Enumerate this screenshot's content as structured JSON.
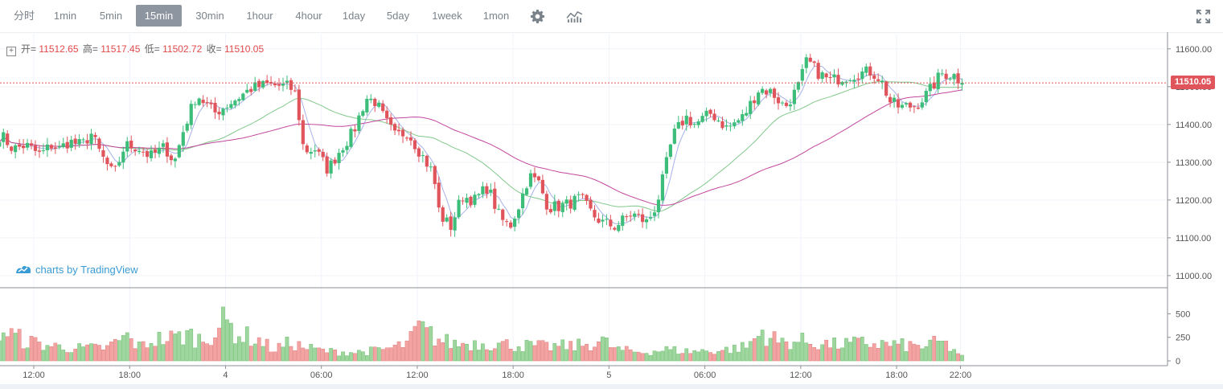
{
  "toolbar": {
    "timeframes": [
      "分时",
      "1min",
      "5min",
      "15min",
      "30min",
      "1hour",
      "4hour",
      "1day",
      "5day",
      "1week",
      "1mon"
    ],
    "active": "15min",
    "icons": [
      "gear-icon",
      "indicators-icon",
      "fullscreen-icon"
    ]
  },
  "legend": {
    "open_label": "开=",
    "open": "11512.65",
    "high_label": "高=",
    "high": "11517.45",
    "low_label": "低=",
    "low": "11502.72",
    "close_label": "收=",
    "close": "11510.05"
  },
  "watermark": "charts by TradingView",
  "last_price": "11510.05",
  "colors": {
    "up": "#26a69a",
    "up_body": "#3dbd7a",
    "down": "#e0555b",
    "ma_fast": "#a7b1e8",
    "ma_mid": "#82c88b",
    "ma_slow": "#c2479e",
    "price_line": "#e0555b"
  },
  "chart_data": {
    "type": "candlestick",
    "timeframe": "15min",
    "price_axis": {
      "ticks": [
        11000,
        11100,
        11200,
        11300,
        11400,
        11500,
        11600
      ],
      "ylim": [
        10970,
        11640
      ]
    },
    "volume_axis": {
      "ticks": [
        0,
        250,
        500
      ],
      "ylim": [
        0,
        760
      ]
    },
    "time_axis": {
      "labels": [
        "12:00",
        "18:00",
        "4",
        "06:00",
        "12:00",
        "18:00",
        "5",
        "06:00",
        "12:00",
        "18:00",
        "22:00"
      ],
      "label_positions_hours": [
        12,
        18,
        24,
        30,
        36,
        42,
        48,
        54,
        60,
        66,
        70
      ]
    },
    "start_hour": 9.85,
    "last_close": 11510.05,
    "close_points": [
      [
        10.0,
        11370
      ],
      [
        10.7,
        11335
      ],
      [
        11.5,
        11345
      ],
      [
        12.4,
        11320
      ],
      [
        13.1,
        11345
      ],
      [
        13.6,
        11335
      ],
      [
        14.2,
        11355
      ],
      [
        15.0,
        11345
      ],
      [
        15.6,
        11375
      ],
      [
        16.2,
        11320
      ],
      [
        17.0,
        11265
      ],
      [
        17.7,
        11345
      ],
      [
        18.5,
        11340
      ],
      [
        19.3,
        11315
      ],
      [
        20.2,
        11340
      ],
      [
        20.8,
        11300
      ],
      [
        21.4,
        11390
      ],
      [
        22.2,
        11480
      ],
      [
        23.3,
        11430
      ],
      [
        24.4,
        11460
      ],
      [
        25.6,
        11495
      ],
      [
        26.6,
        11505
      ],
      [
        28.0,
        11500
      ],
      [
        28.4,
        11480
      ],
      [
        28.9,
        11330
      ],
      [
        29.6,
        11335
      ],
      [
        30.4,
        11280
      ],
      [
        31.2,
        11335
      ],
      [
        32.0,
        11380
      ],
      [
        32.8,
        11470
      ],
      [
        33.4,
        11460
      ],
      [
        34.0,
        11410
      ],
      [
        34.6,
        11370
      ],
      [
        35.4,
        11380
      ],
      [
        36.2,
        11325
      ],
      [
        37.0,
        11270
      ],
      [
        37.4,
        11160
      ],
      [
        38.1,
        11130
      ],
      [
        38.8,
        11210
      ],
      [
        39.6,
        11200
      ],
      [
        40.4,
        11235
      ],
      [
        41.2,
        11150
      ],
      [
        41.8,
        11130
      ],
      [
        42.4,
        11190
      ],
      [
        43.0,
        11265
      ],
      [
        43.6,
        11245
      ],
      [
        44.2,
        11180
      ],
      [
        45.2,
        11185
      ],
      [
        46.2,
        11205
      ],
      [
        47.0,
        11160
      ],
      [
        47.6,
        11140
      ],
      [
        48.4,
        11130
      ],
      [
        49.4,
        11165
      ],
      [
        50.4,
        11140
      ],
      [
        51.0,
        11190
      ],
      [
        51.4,
        11260
      ],
      [
        52.0,
        11370
      ],
      [
        52.8,
        11420
      ],
      [
        53.4,
        11400
      ],
      [
        54.4,
        11430
      ],
      [
        55.4,
        11390
      ],
      [
        56.4,
        11420
      ],
      [
        57.4,
        11495
      ],
      [
        58.2,
        11485
      ],
      [
        59.0,
        11445
      ],
      [
        59.8,
        11495
      ],
      [
        60.4,
        11570
      ],
      [
        61.0,
        11540
      ],
      [
        61.8,
        11515
      ],
      [
        62.6,
        11525
      ],
      [
        63.6,
        11535
      ],
      [
        64.4,
        11540
      ],
      [
        65.0,
        11520
      ],
      [
        65.6,
        11460
      ],
      [
        66.2,
        11445
      ],
      [
        67.2,
        11450
      ],
      [
        68.0,
        11485
      ],
      [
        68.8,
        11535
      ],
      [
        69.6,
        11530
      ],
      [
        70.1,
        11510
      ]
    ],
    "volume_points": [
      [
        10.0,
        320
      ],
      [
        11.5,
        210
      ],
      [
        13.0,
        160
      ],
      [
        15.0,
        130
      ],
      [
        16.6,
        140
      ],
      [
        17.8,
        260
      ],
      [
        18.6,
        150
      ],
      [
        19.6,
        230
      ],
      [
        20.8,
        240
      ],
      [
        21.6,
        280
      ],
      [
        22.6,
        220
      ],
      [
        24.0,
        420
      ],
      [
        24.8,
        280
      ],
      [
        26.0,
        230
      ],
      [
        27.0,
        120
      ],
      [
        28.2,
        200
      ],
      [
        28.6,
        160
      ],
      [
        29.0,
        140
      ],
      [
        30.4,
        100
      ],
      [
        32.0,
        90
      ],
      [
        33.5,
        110
      ],
      [
        34.5,
        140
      ],
      [
        35.5,
        190
      ],
      [
        36.0,
        360
      ],
      [
        36.6,
        300
      ],
      [
        37.4,
        220
      ],
      [
        38.4,
        180
      ],
      [
        40.0,
        190
      ],
      [
        42.0,
        170
      ],
      [
        44.0,
        150
      ],
      [
        46.0,
        160
      ],
      [
        47.6,
        210
      ],
      [
        48.5,
        120
      ],
      [
        50.0,
        90
      ],
      [
        51.6,
        120
      ],
      [
        53.0,
        100
      ],
      [
        55.0,
        110
      ],
      [
        56.6,
        150
      ],
      [
        57.6,
        310
      ],
      [
        58.6,
        200
      ],
      [
        60.0,
        210
      ],
      [
        62.0,
        170
      ],
      [
        64.0,
        190
      ],
      [
        66.0,
        170
      ],
      [
        67.5,
        150
      ],
      [
        68.8,
        200
      ],
      [
        70.1,
        60
      ]
    ],
    "moving_averages": [
      {
        "name": "",
        "color": "#a7b1e8",
        "period": 5
      },
      {
        "name": "",
        "color": "#82c88b",
        "period": 30
      },
      {
        "name": "",
        "color": "#c2479e",
        "period": 60
      }
    ]
  }
}
